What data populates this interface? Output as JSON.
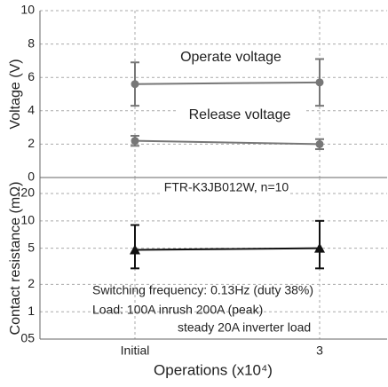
{
  "chart_data": {
    "type": "line",
    "categories": [
      "Initial",
      "3"
    ],
    "xlabel": "Operations (x10⁴)",
    "panels": [
      {
        "ylabel": "Voltage (V)",
        "ylim": [
          0,
          10
        ],
        "yticks": [
          0,
          2,
          4,
          6,
          8,
          10
        ],
        "log": false,
        "grid": true,
        "marker": "circle",
        "series": [
          {
            "name": "Operate voltage",
            "color": "#777777",
            "values": [
              5.6,
              5.7
            ],
            "err_high": [
              1.3,
              1.4
            ],
            "err_low": [
              1.3,
              1.4
            ]
          },
          {
            "name": "Release voltage",
            "color": "#777777",
            "values": [
              2.2,
              2.0
            ],
            "err_high": [
              0.3,
              0.3
            ],
            "err_low": [
              0.3,
              0.3
            ]
          }
        ]
      },
      {
        "ylabel": "Contact resistance (mΩ)",
        "ylim": [
          0.5,
          30
        ],
        "log": true,
        "grid": true,
        "marker": "triangle",
        "yticks": [
          20,
          10,
          5,
          2,
          1,
          {
            "value": 0.5,
            "label": "05"
          }
        ],
        "series": [
          {
            "name": "FTR-K3JB012W, n=10",
            "color": "#111111",
            "values": [
              4.8,
              5.0
            ],
            "err_high": [
              4.2,
              5.0
            ],
            "err_low": [
              1.8,
              2.0
            ]
          }
        ],
        "annotations": [
          "Switching frequency: 0.13Hz (duty 38%)",
          "Load: 100A inrush 200A (peak)",
          "steady 20A inverter load"
        ]
      }
    ]
  }
}
